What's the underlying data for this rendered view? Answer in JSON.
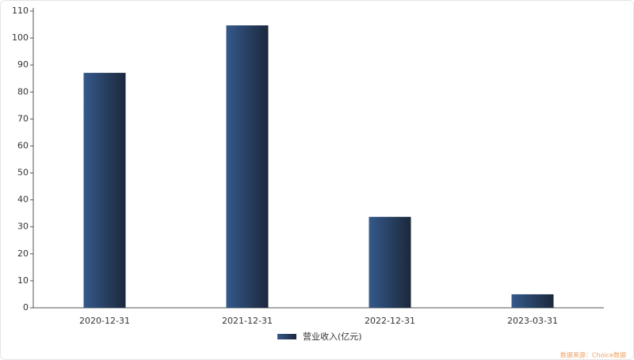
{
  "chart_data": {
    "type": "bar",
    "categories": [
      "2020-12-31",
      "2021-12-31",
      "2022-12-31",
      "2023-03-31"
    ],
    "series": [
      {
        "name": "营业收入(亿元)",
        "color": "#35598a",
        "values": [
          87.1,
          104.7,
          33.7,
          5.0
        ]
      }
    ],
    "ylim": [
      0,
      110
    ],
    "yticks": [
      0,
      10,
      20,
      30,
      40,
      50,
      60,
      70,
      80,
      90,
      100,
      110
    ],
    "grid": false,
    "legend": "bottom",
    "source": "数据来源：Choice数据"
  }
}
